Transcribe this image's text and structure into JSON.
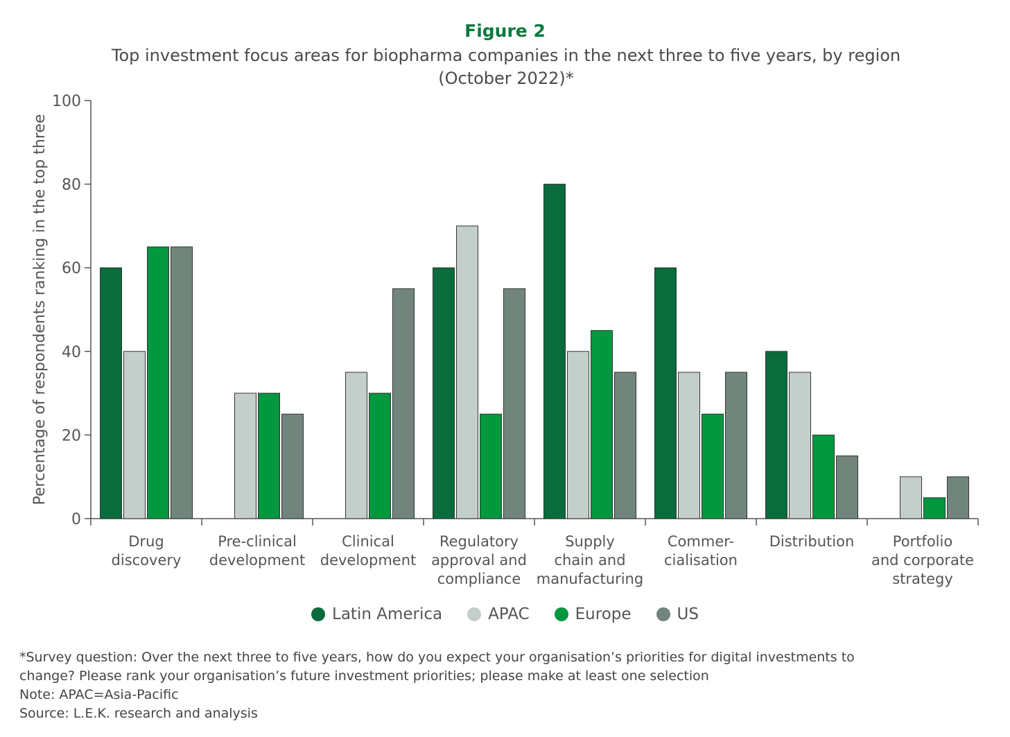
{
  "figure_label": "Figure 2",
  "title_line1": "Top investment focus areas for biopharma companies in the next three to five years, by region",
  "title_line2": "(October 2022)*",
  "notes": {
    "survey_line1": "*Survey question: Over the next three to five years, how do you expect your organisation’s priorities for digital investments to",
    "survey_line2": "change? Please rank your organisation’s future investment priorities; please make at least one selection",
    "note": "Note: APAC=Asia-Pacific",
    "source": "Source: L.E.K. research and analysis"
  },
  "chart_data": {
    "type": "bar",
    "ylabel": "Percentage of respondents ranking in the top three",
    "xlabel": "",
    "ylim": [
      0,
      100
    ],
    "yticks": [
      0,
      20,
      40,
      60,
      80,
      100
    ],
    "grid": false,
    "legend_position": "bottom",
    "categories": [
      [
        "Drug",
        "discovery"
      ],
      [
        "Pre-clinical",
        "development"
      ],
      [
        "Clinical",
        "development"
      ],
      [
        "Regulatory",
        "approval and",
        "compliance"
      ],
      [
        "Supply",
        "chain and",
        "manufacturing"
      ],
      [
        "Commer-",
        "cialisation"
      ],
      [
        "Distribution"
      ],
      [
        "Portfolio",
        "and corporate",
        "strategy"
      ]
    ],
    "series": [
      {
        "name": "Latin America",
        "color": "#0a6b3c",
        "values": [
          60,
          0,
          0,
          60,
          80,
          60,
          40,
          0
        ]
      },
      {
        "name": "APAC",
        "color": "#c4cfcb",
        "values": [
          40,
          30,
          35,
          70,
          40,
          35,
          35,
          10
        ]
      },
      {
        "name": "Europe",
        "color": "#03973e",
        "values": [
          65,
          30,
          30,
          25,
          45,
          25,
          20,
          5
        ]
      },
      {
        "name": "US",
        "color": "#71857c",
        "values": [
          65,
          25,
          55,
          55,
          35,
          35,
          15,
          10
        ]
      }
    ]
  }
}
